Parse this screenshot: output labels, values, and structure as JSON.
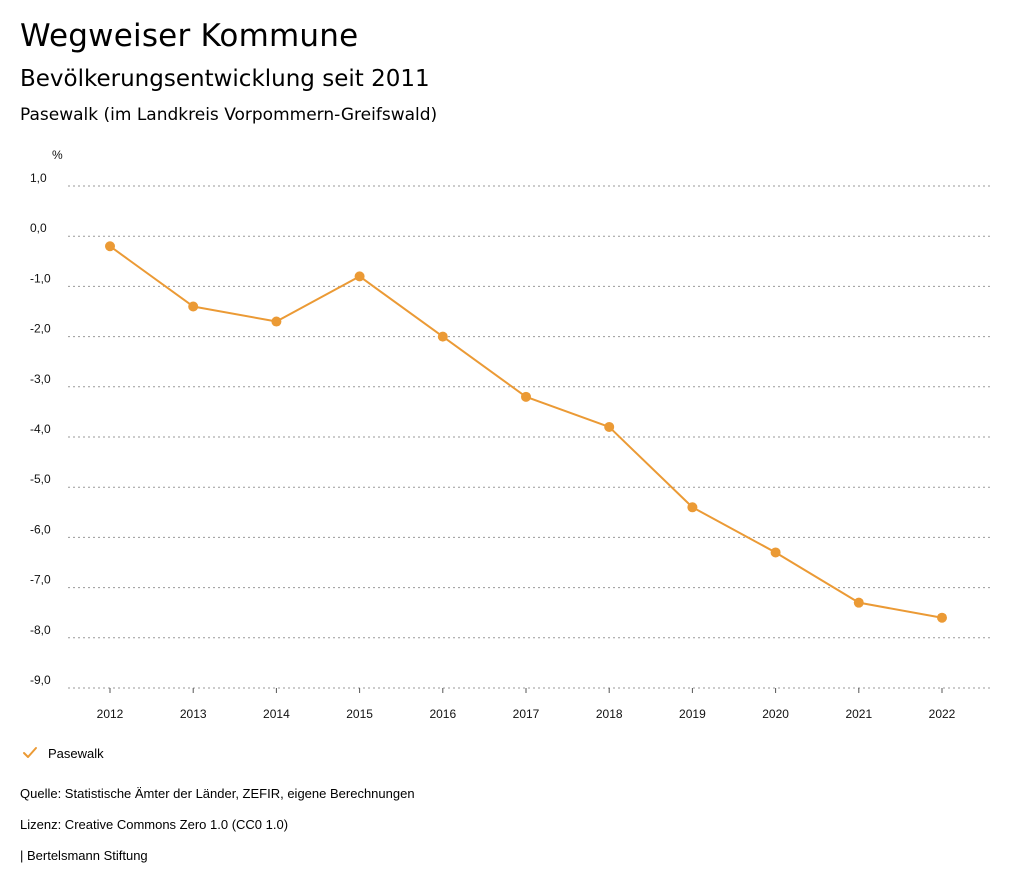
{
  "header": {
    "title": "Wegweiser Kommune",
    "subtitle": "Bevölkerungsentwicklung seit 2011",
    "region": "Pasewalk (im Landkreis Vorpommern-Greifswald)"
  },
  "colors": {
    "series": "#EB9A35",
    "grid": "#9a9a9a"
  },
  "chart_data": {
    "type": "line",
    "x": [
      "2012",
      "2013",
      "2014",
      "2015",
      "2016",
      "2017",
      "2018",
      "2019",
      "2020",
      "2021",
      "2022"
    ],
    "series": [
      {
        "name": "Pasewalk",
        "values": [
          -0.2,
          -1.4,
          -1.7,
          -0.8,
          -2.0,
          -3.2,
          -3.8,
          -5.4,
          -6.3,
          -7.3,
          -7.6
        ]
      }
    ],
    "ylabel": "%",
    "ylim": [
      -9.0,
      1.0
    ],
    "yticks": [
      "1,0",
      "0,0",
      "-1,0",
      "-2,0",
      "-3,0",
      "-4,0",
      "-5,0",
      "-6,0",
      "-7,0",
      "-8,0",
      "-9,0"
    ],
    "ytick_values": [
      1,
      0,
      -1,
      -2,
      -3,
      -4,
      -5,
      -6,
      -7,
      -8,
      -9
    ],
    "grid": true,
    "legend": "bottom-left"
  },
  "legend": {
    "label": "Pasewalk",
    "icon": "check-icon"
  },
  "footer": {
    "source": "Quelle: Statistische Ämter der Länder, ZEFIR, eigene Berechnungen",
    "license": "Lizenz: Creative Commons Zero 1.0 (CC0 1.0)",
    "publisher": "| Bertelsmann Stiftung"
  }
}
